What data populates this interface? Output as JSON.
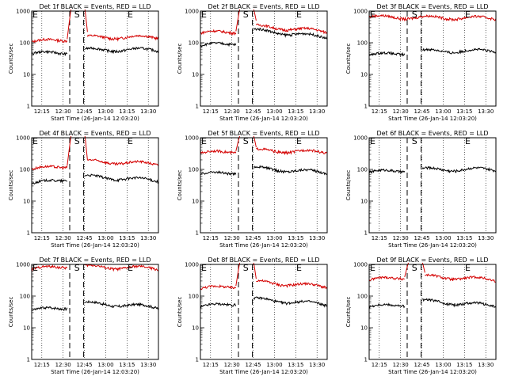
{
  "chart_data": [
    {
      "type": "line",
      "title": "Det 1f BLACK = Events, RED = LLD",
      "xlabel": "Start Time (26-Jan-14 12:03:20)",
      "ylabel": "Counts/sec",
      "xticks": [
        "12:15",
        "12:30",
        "12:45",
        "13:00",
        "13:15",
        "13:30"
      ],
      "yticks": [
        "1",
        "10",
        "100",
        "1000"
      ],
      "ylim": [
        1,
        1000
      ],
      "yscale": "log",
      "xlim_min": [
        0,
        100
      ],
      "markers": [
        {
          "label": "E",
          "t": 0
        },
        {
          "label": "S",
          "t": 33
        },
        {
          "label": "E",
          "t": 75
        }
      ],
      "series": [
        {
          "name": "LLD",
          "color": "#d40000",
          "segments": [
            {
              "start": 0,
              "end": 28,
              "from": 105,
              "to": 130
            },
            {
              "start": 28,
              "end": 31,
              "from": 130,
              "to": 1200
            },
            {
              "start": 42,
              "end": 44,
              "from": 1200,
              "to": 220
            },
            {
              "start": 44,
              "end": 100,
              "from": 150,
              "to": 150
            }
          ]
        },
        {
          "name": "Events",
          "color": "#000000",
          "segments": [
            {
              "start": 0,
              "end": 28,
              "from": 45,
              "to": 50
            },
            {
              "start": 42,
              "end": 100,
              "from": 60,
              "to": 60
            }
          ]
        }
      ]
    },
    {
      "type": "line",
      "title": "Det 2f BLACK = Events, RED = LLD",
      "xlabel": "Start Time (26-Jan-14 12:03:20)",
      "ylabel": "Counts/sec",
      "xticks": [
        "12:15",
        "12:30",
        "12:45",
        "13:00",
        "13:15",
        "13:30"
      ],
      "yticks": [
        "1",
        "10",
        "100",
        "1000"
      ],
      "ylim": [
        1,
        1000
      ],
      "yscale": "log",
      "xlim_min": [
        0,
        100
      ],
      "markers": [
        {
          "label": "E",
          "t": 0
        },
        {
          "label": "S",
          "t": 33
        },
        {
          "label": "E",
          "t": 75
        }
      ],
      "series": [
        {
          "name": "LLD",
          "color": "#d40000",
          "segments": [
            {
              "start": 0,
              "end": 28,
              "from": 200,
              "to": 230
            },
            {
              "start": 28,
              "end": 31,
              "from": 230,
              "to": 1200
            },
            {
              "start": 42,
              "end": 44,
              "from": 1200,
              "to": 500
            },
            {
              "start": 44,
              "end": 100,
              "from": 330,
              "to": 230
            }
          ]
        },
        {
          "name": "Events",
          "color": "#000000",
          "segments": [
            {
              "start": 0,
              "end": 28,
              "from": 80,
              "to": 100
            },
            {
              "start": 42,
              "end": 100,
              "from": 250,
              "to": 150
            }
          ]
        }
      ]
    },
    {
      "type": "line",
      "title": "Det 3f BLACK = Events, RED = LLD",
      "xlabel": "Start Time (26-Jan-14 12:03:20)",
      "ylabel": "Counts/sec",
      "xticks": [
        "12:15",
        "12:30",
        "12:45",
        "13:00",
        "13:15",
        "13:30"
      ],
      "yticks": [
        "1",
        "10",
        "100",
        "1000"
      ],
      "ylim": [
        1,
        1000
      ],
      "yscale": "log",
      "xlim_min": [
        0,
        100
      ],
      "markers": [
        {
          "label": "E",
          "t": 0
        },
        {
          "label": "S",
          "t": 33
        },
        {
          "label": "E",
          "t": 75
        }
      ],
      "series": [
        {
          "name": "LLD",
          "color": "#d40000",
          "segments": [
            {
              "start": 0,
              "end": 100,
              "from": 650,
              "to": 600
            }
          ]
        },
        {
          "name": "Events",
          "color": "#000000",
          "segments": [
            {
              "start": 0,
              "end": 28,
              "from": 40,
              "to": 48
            },
            {
              "start": 42,
              "end": 100,
              "from": 55,
              "to": 55
            }
          ]
        }
      ]
    },
    {
      "type": "line",
      "title": "Det 4f BLACK = Events, RED = LLD",
      "xlabel": "Start Time (26-Jan-14 12:03:20)",
      "ylabel": "Counts/sec",
      "xticks": [
        "12:15",
        "12:30",
        "12:45",
        "13:00",
        "13:15",
        "13:30"
      ],
      "yticks": [
        "1",
        "10",
        "100",
        "1000"
      ],
      "ylim": [
        1,
        1000
      ],
      "yscale": "log",
      "xlim_min": [
        0,
        100
      ],
      "markers": [
        {
          "label": "E",
          "t": 0
        },
        {
          "label": "S",
          "t": 33
        },
        {
          "label": "E",
          "t": 75
        }
      ],
      "series": [
        {
          "name": "LLD",
          "color": "#d40000",
          "segments": [
            {
              "start": 0,
              "end": 28,
              "from": 100,
              "to": 130
            },
            {
              "start": 28,
              "end": 31,
              "from": 130,
              "to": 1200
            },
            {
              "start": 42,
              "end": 44,
              "from": 1200,
              "to": 200
            },
            {
              "start": 44,
              "end": 100,
              "from": 180,
              "to": 150
            }
          ]
        },
        {
          "name": "Events",
          "color": "#000000",
          "segments": [
            {
              "start": 0,
              "end": 28,
              "from": 35,
              "to": 50
            },
            {
              "start": 42,
              "end": 100,
              "from": 60,
              "to": 45
            }
          ]
        }
      ]
    },
    {
      "type": "line",
      "title": "Det 5f BLACK = Events, RED = LLD",
      "xlabel": "Start Time (26-Jan-14 12:03:20)",
      "ylabel": "Counts/sec",
      "xticks": [
        "12:15",
        "12:30",
        "12:45",
        "13:00",
        "13:15",
        "13:30"
      ],
      "yticks": [
        "1",
        "10",
        "100",
        "1000"
      ],
      "ylim": [
        1,
        1000
      ],
      "yscale": "log",
      "xlim_min": [
        0,
        100
      ],
      "markers": [
        {
          "label": "E",
          "t": 0
        },
        {
          "label": "S",
          "t": 33
        },
        {
          "label": "E",
          "t": 75
        }
      ],
      "series": [
        {
          "name": "LLD",
          "color": "#d40000",
          "segments": [
            {
              "start": 0,
              "end": 28,
              "from": 320,
              "to": 380
            },
            {
              "start": 28,
              "end": 31,
              "from": 380,
              "to": 1200
            },
            {
              "start": 42,
              "end": 44,
              "from": 1200,
              "to": 500
            },
            {
              "start": 44,
              "end": 100,
              "from": 400,
              "to": 350
            }
          ]
        },
        {
          "name": "Events",
          "color": "#000000",
          "segments": [
            {
              "start": 0,
              "end": 28,
              "from": 70,
              "to": 80
            },
            {
              "start": 42,
              "end": 100,
              "from": 110,
              "to": 80
            }
          ]
        }
      ]
    },
    {
      "type": "line",
      "title": "Det 6f BLACK = Events, RED = LLD",
      "xlabel": "Start Time (26-Jan-14 12:03:20)",
      "ylabel": "Counts/sec",
      "xticks": [
        "12:15",
        "12:30",
        "12:45",
        "13:00",
        "13:15",
        "13:30"
      ],
      "yticks": [
        "1",
        "10",
        "100",
        "1000"
      ],
      "ylim": [
        1,
        1000
      ],
      "yscale": "log",
      "xlim_min": [
        0,
        100
      ],
      "markers": [
        {
          "label": "E",
          "t": 0
        },
        {
          "label": "S",
          "t": 33
        },
        {
          "label": "E",
          "t": 75
        }
      ],
      "series": [
        {
          "name": "LLD",
          "color": "#d40000",
          "segments": []
        },
        {
          "name": "Events",
          "color": "#000000",
          "segments": [
            {
              "start": 0,
              "end": 28,
              "from": 80,
              "to": 95
            },
            {
              "start": 42,
              "end": 100,
              "from": 100,
              "to": 100
            }
          ]
        }
      ]
    },
    {
      "type": "line",
      "title": "Det 7f BLACK = Events, RED = LLD",
      "xlabel": "Start Time (26-Jan-14 12:03:20)",
      "ylabel": "Counts/sec",
      "xticks": [
        "12:15",
        "12:30",
        "12:45",
        "13:00",
        "13:15",
        "13:30"
      ],
      "yticks": [
        "1",
        "10",
        "100",
        "1000"
      ],
      "ylim": [
        1,
        1000
      ],
      "yscale": "log",
      "xlim_min": [
        0,
        100
      ],
      "markers": [
        {
          "label": "E",
          "t": 0
        },
        {
          "label": "S",
          "t": 33
        },
        {
          "label": "E",
          "t": 75
        }
      ],
      "series": [
        {
          "name": "LLD",
          "color": "#d40000",
          "segments": [
            {
              "start": 0,
              "end": 28,
              "from": 700,
              "to": 900
            },
            {
              "start": 42,
              "end": 100,
              "from": 850,
              "to": 750
            }
          ]
        },
        {
          "name": "Events",
          "color": "#000000",
          "segments": [
            {
              "start": 0,
              "end": 28,
              "from": 35,
              "to": 45
            },
            {
              "start": 42,
              "end": 100,
              "from": 60,
              "to": 45
            }
          ]
        }
      ]
    },
    {
      "type": "line",
      "title": "Det 8f BLACK = Events, RED = LLD",
      "xlabel": "Start Time (26-Jan-14 12:03:20)",
      "ylabel": "Counts/sec",
      "xticks": [
        "12:15",
        "12:30",
        "12:45",
        "13:00",
        "13:15",
        "13:30"
      ],
      "yticks": [
        "1",
        "10",
        "100",
        "1000"
      ],
      "ylim": [
        1,
        1000
      ],
      "yscale": "log",
      "xlim_min": [
        0,
        100
      ],
      "markers": [
        {
          "label": "E",
          "t": 0
        },
        {
          "label": "S",
          "t": 33
        },
        {
          "label": "E",
          "t": 75
        }
      ],
      "series": [
        {
          "name": "LLD",
          "color": "#d40000",
          "segments": [
            {
              "start": 0,
              "end": 28,
              "from": 170,
              "to": 210
            },
            {
              "start": 28,
              "end": 31,
              "from": 210,
              "to": 1200
            },
            {
              "start": 42,
              "end": 44,
              "from": 1200,
              "to": 350
            },
            {
              "start": 44,
              "end": 100,
              "from": 280,
              "to": 200
            }
          ]
        },
        {
          "name": "Events",
          "color": "#000000",
          "segments": [
            {
              "start": 0,
              "end": 28,
              "from": 45,
              "to": 60
            },
            {
              "start": 42,
              "end": 100,
              "from": 80,
              "to": 55
            }
          ]
        }
      ]
    },
    {
      "type": "line",
      "title": "Det 9f BLACK = Events, RED = LLD",
      "xlabel": "Start Time (26-Jan-14 12:03:20)",
      "ylabel": "Counts/sec",
      "xticks": [
        "12:15",
        "12:30",
        "12:45",
        "13:00",
        "13:15",
        "13:30"
      ],
      "yticks": [
        "1",
        "10",
        "100",
        "1000"
      ],
      "ylim": [
        1,
        1000
      ],
      "yscale": "log",
      "xlim_min": [
        0,
        100
      ],
      "markers": [
        {
          "label": "E",
          "t": 0
        },
        {
          "label": "S",
          "t": 33
        },
        {
          "label": "E",
          "t": 75
        }
      ],
      "series": [
        {
          "name": "LLD",
          "color": "#d40000",
          "segments": [
            {
              "start": 0,
              "end": 28,
              "from": 320,
              "to": 400
            },
            {
              "start": 28,
              "end": 31,
              "from": 400,
              "to": 1200
            },
            {
              "start": 42,
              "end": 44,
              "from": 1200,
              "to": 550
            },
            {
              "start": 44,
              "end": 100,
              "from": 420,
              "to": 330
            }
          ]
        },
        {
          "name": "Events",
          "color": "#000000",
          "segments": [
            {
              "start": 0,
              "end": 28,
              "from": 45,
              "to": 55
            },
            {
              "start": 42,
              "end": 100,
              "from": 70,
              "to": 50
            }
          ]
        }
      ]
    }
  ]
}
